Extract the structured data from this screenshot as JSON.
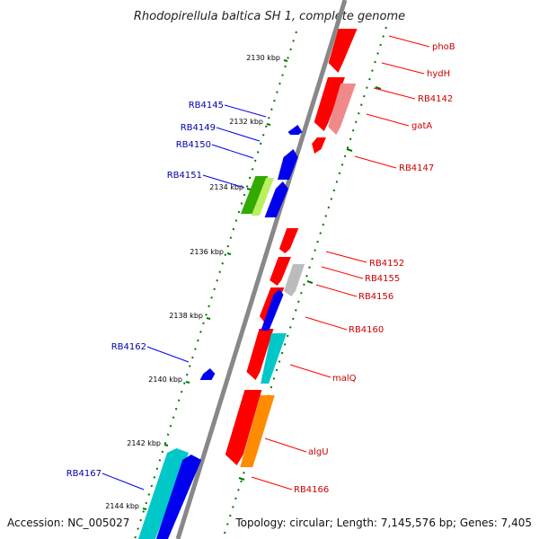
{
  "title": "Rhodopirellula baltica SH 1, complete genome",
  "accession": "Accession: NC_005027",
  "topology": "Topology: circular; Length: 7,145,576 bp; Genes: 7,405",
  "colors": {
    "forward": "#ff0000",
    "reverse": "#0000ee",
    "backbone": "#888888",
    "tick": "#007700",
    "pink": "#f08a8a",
    "grey": "#bcbcbc",
    "cyan": "#00c8c8",
    "orange": "#ff8c00",
    "green": "#33aa00",
    "lime": "#b8f060"
  },
  "kbp_ticks": [
    "2130 kbp",
    "2132 kbp",
    "2134 kbp",
    "2136 kbp",
    "2138 kbp",
    "2140 kbp",
    "2142 kbp",
    "2144 kbp"
  ],
  "left_labels": [
    "RB4145",
    "RB4149",
    "RB4150",
    "RB4151",
    "RB4162",
    "RB4167"
  ],
  "right_labels": [
    "phoB",
    "hydH",
    "RB4142",
    "gatA",
    "RB4147",
    "RB4152",
    "RB4155",
    "RB4156",
    "RB4160",
    "malQ",
    "algU",
    "RB4166"
  ]
}
